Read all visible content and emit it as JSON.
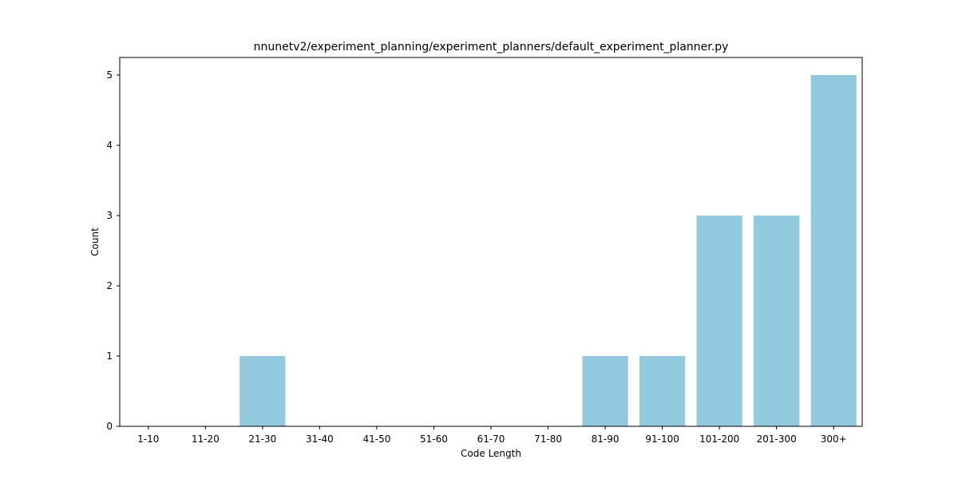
{
  "chart_data": {
    "type": "bar",
    "title": "nnunetv2/experiment_planning/experiment_planners/default_experiment_planner.py",
    "xlabel": "Code Length",
    "ylabel": "Count",
    "categories": [
      "1-10",
      "11-20",
      "21-30",
      "31-40",
      "41-50",
      "51-60",
      "61-70",
      "71-80",
      "81-90",
      "91-100",
      "101-200",
      "201-300",
      "300+"
    ],
    "values": [
      0,
      0,
      1,
      0,
      0,
      0,
      0,
      0,
      1,
      1,
      3,
      3,
      5
    ],
    "ylim": [
      0,
      5.25
    ],
    "yticks": [
      0,
      1,
      2,
      3,
      4,
      5
    ],
    "grid": false,
    "bar_color": "#92c9df"
  }
}
